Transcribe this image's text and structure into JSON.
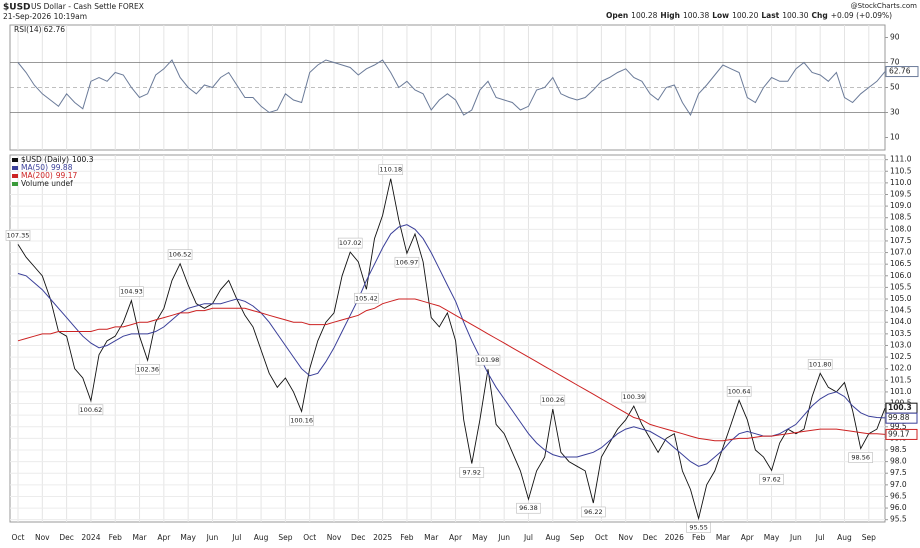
{
  "header": {
    "symbol": "$USD",
    "name": "US Dollar - Cash Settle FOREX",
    "date": "21-Sep-2026 10:19am",
    "source": "@StockCharts.com",
    "quote": [
      {
        "label": "Open",
        "value": "100.28"
      },
      {
        "label": "High",
        "value": "100.38"
      },
      {
        "label": "Low",
        "value": "100.20"
      },
      {
        "label": "Last",
        "value": "100.30"
      },
      {
        "label": "Chg",
        "value": "+0.09 (+0.09%)"
      }
    ]
  },
  "chart_data": [
    {
      "type": "line",
      "ylim": [
        0,
        100
      ],
      "yticks": [
        10,
        30,
        50,
        70,
        90
      ],
      "levels": [
        30,
        50,
        70
      ],
      "series": [
        {
          "name": "RSI(14)",
          "color": "#6b7b99",
          "last": 62.76,
          "values": [
            70,
            62,
            52,
            45,
            40,
            35,
            45,
            38,
            33,
            55,
            58,
            55,
            62,
            60,
            50,
            42,
            45,
            60,
            65,
            72,
            58,
            50,
            45,
            52,
            50,
            58,
            62,
            52,
            42,
            42,
            35,
            30,
            32,
            45,
            40,
            38,
            62,
            68,
            72,
            70,
            68,
            66,
            60,
            65,
            68,
            72,
            62,
            50,
            55,
            48,
            45,
            32,
            40,
            45,
            40,
            28,
            32,
            48,
            55,
            42,
            40,
            38,
            32,
            35,
            48,
            50,
            58,
            45,
            42,
            40,
            42,
            48,
            55,
            58,
            62,
            65,
            58,
            55,
            45,
            40,
            50,
            52,
            38,
            28,
            45,
            52,
            60,
            68,
            65,
            62,
            42,
            38,
            50,
            58,
            55,
            55,
            65,
            70,
            62,
            60,
            55,
            62,
            42,
            38,
            45,
            50,
            55,
            62.76
          ]
        }
      ]
    },
    {
      "type": "line",
      "ylim": [
        95.4,
        111.2
      ],
      "grid": true,
      "yticks": [
        95.5,
        {
          "value": 96,
          "label": "96.0"
        },
        96.5,
        {
          "value": 97,
          "label": "97.0"
        },
        97.5,
        {
          "value": 98,
          "label": "98.0"
        },
        98.5,
        {
          "value": 99,
          "label": "99.0"
        },
        99.5,
        {
          "value": 100,
          "label": "100.0"
        },
        100.5,
        {
          "value": 101,
          "label": "101.0"
        },
        101.5,
        {
          "value": 102,
          "label": "102.0"
        },
        102.5,
        {
          "value": 103,
          "label": "103.0"
        },
        103.5,
        {
          "value": 104,
          "label": "104.0"
        },
        104.5,
        {
          "value": 105,
          "label": "105.0"
        },
        105.5,
        {
          "value": 106,
          "label": "106.0"
        },
        106.5,
        {
          "value": 107,
          "label": "107.0"
        },
        107.5,
        {
          "value": 108,
          "label": "108.0"
        },
        108.5,
        {
          "value": 109,
          "label": "109.0"
        },
        109.5,
        {
          "value": 110,
          "label": "110.0"
        },
        110.5,
        {
          "value": 111,
          "label": "111.0"
        }
      ],
      "categories": [
        "Oct",
        null,
        null,
        "Nov",
        null,
        null,
        "Dec",
        null,
        null,
        "2024",
        null,
        null,
        "Feb",
        null,
        null,
        "Mar",
        null,
        null,
        "Apr",
        null,
        null,
        "May",
        null,
        null,
        "Jun",
        null,
        null,
        "Jul",
        null,
        null,
        "Aug",
        null,
        null,
        "Sep",
        null,
        null,
        "Oct",
        null,
        null,
        "Nov",
        null,
        null,
        "Dec",
        null,
        null,
        "2025",
        null,
        null,
        "Feb",
        null,
        null,
        "Mar",
        null,
        null,
        "Apr",
        null,
        null,
        "May",
        null,
        null,
        "Jun",
        null,
        null,
        "Jul",
        null,
        null,
        "Aug",
        null,
        null,
        "Sep",
        null,
        null,
        "Oct",
        null,
        null,
        "Nov",
        null,
        null,
        "Dec",
        null,
        null,
        "2026",
        null,
        null,
        "Feb",
        null,
        null,
        "Mar",
        null,
        null,
        "Apr",
        null,
        null,
        "May",
        null,
        null,
        "Jun",
        null,
        null,
        "Jul",
        null,
        null,
        "Aug",
        null,
        null,
        "Sep",
        null,
        null
      ],
      "volume": {
        "label": "Volume undef",
        "color": "#3a9a3a"
      },
      "series": [
        {
          "name": "$USD (Daily)",
          "color": "#111111",
          "last": 100.3,
          "values": [
            107.35,
            106.8,
            106.4,
            106.0,
            105.0,
            103.6,
            103.4,
            102.0,
            101.6,
            100.62,
            102.6,
            103.2,
            103.4,
            104.0,
            104.93,
            103.4,
            102.36,
            104.0,
            104.6,
            105.8,
            106.52,
            105.6,
            104.8,
            104.6,
            104.8,
            105.4,
            105.8,
            105.0,
            104.3,
            103.8,
            102.8,
            101.8,
            101.2,
            101.6,
            101.0,
            100.16,
            102.0,
            103.2,
            104.0,
            104.4,
            106.0,
            107.02,
            106.6,
            105.42,
            107.6,
            108.6,
            110.18,
            108.4,
            106.97,
            107.8,
            106.6,
            104.2,
            103.8,
            104.4,
            103.2,
            99.8,
            97.92,
            99.8,
            101.98,
            99.6,
            99.2,
            98.4,
            97.6,
            96.38,
            97.6,
            98.2,
            100.26,
            98.4,
            98.0,
            97.8,
            97.6,
            96.22,
            98.2,
            98.8,
            99.4,
            99.8,
            100.39,
            99.6,
            99.0,
            98.4,
            99.0,
            99.2,
            97.6,
            96.8,
            95.55,
            97.0,
            97.6,
            98.6,
            99.6,
            100.64,
            99.8,
            98.5,
            98.2,
            97.62,
            98.8,
            99.4,
            99.2,
            99.4,
            100.8,
            101.8,
            101.2,
            101.0,
            101.4,
            100.2,
            98.56,
            99.2,
            99.4,
            100.3
          ],
          "value_labels": [
            "107.35",
            null,
            null,
            null,
            null,
            null,
            null,
            null,
            null,
            "100.62",
            null,
            null,
            null,
            null,
            "104.93",
            null,
            "102.36",
            null,
            null,
            null,
            "106.52",
            null,
            null,
            null,
            null,
            null,
            null,
            null,
            null,
            null,
            null,
            null,
            null,
            null,
            null,
            "100.16",
            null,
            null,
            null,
            null,
            null,
            "107.02",
            null,
            "105.42",
            null,
            null,
            "110.18",
            null,
            "106.97",
            null,
            null,
            null,
            null,
            null,
            null,
            null,
            "97.92",
            null,
            "101.98",
            null,
            null,
            null,
            null,
            "96.38",
            null,
            null,
            "100.26",
            null,
            null,
            null,
            null,
            "96.22",
            null,
            null,
            null,
            null,
            "100.39",
            null,
            null,
            null,
            null,
            null,
            null,
            null,
            "95.55",
            null,
            null,
            null,
            null,
            "100.64",
            null,
            null,
            null,
            "97.62",
            null,
            null,
            null,
            null,
            null,
            "101.80",
            null,
            null,
            null,
            null,
            "98.56",
            null,
            null,
            null
          ]
        },
        {
          "name": "MA(50)",
          "color": "#3a3f99",
          "last": 99.88,
          "values": [
            106.1,
            106.0,
            105.7,
            105.4,
            105.0,
            104.6,
            104.2,
            103.8,
            103.4,
            103.1,
            102.9,
            103.0,
            103.2,
            103.4,
            103.5,
            103.5,
            103.5,
            103.6,
            103.8,
            104.1,
            104.4,
            104.6,
            104.7,
            104.8,
            104.8,
            104.8,
            104.9,
            105.0,
            104.9,
            104.7,
            104.4,
            104.0,
            103.5,
            103.0,
            102.5,
            102.0,
            101.7,
            101.8,
            102.3,
            102.9,
            103.6,
            104.3,
            105.0,
            105.8,
            106.5,
            107.2,
            107.8,
            108.1,
            108.2,
            108.0,
            107.6,
            107.0,
            106.3,
            105.6,
            104.9,
            104.0,
            103.2,
            102.5,
            101.8,
            101.2,
            100.7,
            100.2,
            99.7,
            99.2,
            98.8,
            98.5,
            98.3,
            98.2,
            98.2,
            98.2,
            98.3,
            98.4,
            98.6,
            98.9,
            99.2,
            99.4,
            99.5,
            99.4,
            99.3,
            99.1,
            98.9,
            98.6,
            98.3,
            98.0,
            97.8,
            97.9,
            98.2,
            98.5,
            98.9,
            99.2,
            99.3,
            99.2,
            99.1,
            99.1,
            99.2,
            99.4,
            99.6,
            100.0,
            100.4,
            100.7,
            100.9,
            101.0,
            100.8,
            100.4,
            100.1,
            99.95,
            99.9,
            99.88
          ]
        },
        {
          "name": "MA(200)",
          "color": "#cc2222",
          "last": 99.17,
          "values": [
            103.2,
            103.3,
            103.4,
            103.5,
            103.5,
            103.6,
            103.6,
            103.6,
            103.6,
            103.6,
            103.7,
            103.7,
            103.8,
            103.8,
            103.9,
            104.0,
            104.0,
            104.1,
            104.2,
            104.3,
            104.4,
            104.4,
            104.5,
            104.5,
            104.6,
            104.6,
            104.6,
            104.6,
            104.6,
            104.5,
            104.4,
            104.3,
            104.2,
            104.1,
            104.0,
            104.0,
            103.9,
            103.9,
            103.9,
            104.0,
            104.1,
            104.2,
            104.3,
            104.5,
            104.6,
            104.8,
            104.9,
            105.0,
            105.0,
            105.0,
            104.9,
            104.8,
            104.7,
            104.5,
            104.3,
            104.1,
            103.9,
            103.7,
            103.5,
            103.3,
            103.1,
            102.9,
            102.7,
            102.5,
            102.3,
            102.1,
            101.9,
            101.7,
            101.5,
            101.3,
            101.1,
            100.9,
            100.7,
            100.5,
            100.3,
            100.1,
            99.9,
            99.8,
            99.6,
            99.5,
            99.4,
            99.3,
            99.2,
            99.1,
            99.0,
            98.95,
            98.9,
            98.9,
            98.95,
            99.0,
            99.0,
            99.05,
            99.1,
            99.1,
            99.15,
            99.2,
            99.25,
            99.3,
            99.35,
            99.4,
            99.4,
            99.4,
            99.35,
            99.3,
            99.25,
            99.2,
            99.2,
            99.17
          ]
        }
      ]
    }
  ]
}
